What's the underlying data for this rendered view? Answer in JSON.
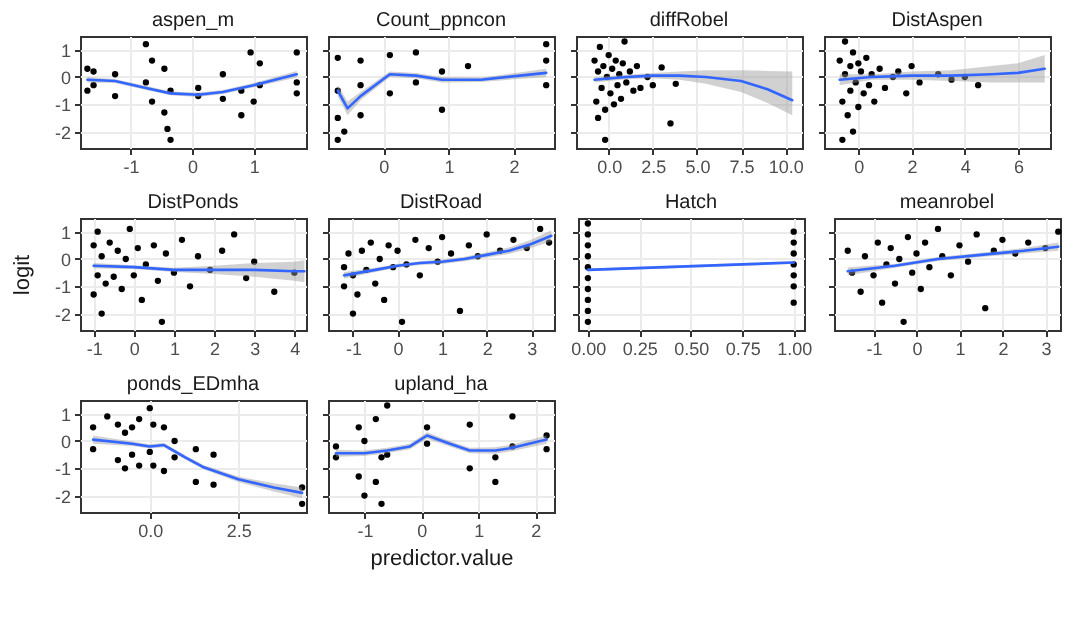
{
  "chart_data": [
    {
      "type": "scatter",
      "title": "aspen_m",
      "xlim": [
        -1.82,
        1.85
      ],
      "xticks": [
        -1,
        0,
        1
      ],
      "ylim": [
        -2.6,
        1.5
      ],
      "yticks": [
        -2,
        -1,
        0,
        1
      ],
      "grid": true,
      "series": [
        {
          "color": "#000000",
          "marker": "circle",
          "x": [
            -1.7,
            -1.7,
            -1.6,
            -1.6,
            -1.25,
            -1.25,
            -0.75,
            -0.75,
            -0.65,
            -0.65,
            -0.45,
            -0.45,
            -0.35,
            -0.35,
            -0.4,
            0.1,
            0.1,
            0.5,
            0.5,
            0.8,
            0.8,
            0.95,
            1.0,
            1.1,
            1.1,
            1.7,
            1.7,
            1.7
          ],
          "values": [
            0.3,
            -0.5,
            0.2,
            -0.3,
            0.1,
            -0.7,
            1.2,
            -0.2,
            0.6,
            -0.9,
            0.3,
            -1.3,
            -0.5,
            -2.3,
            -1.9,
            -0.4,
            -0.7,
            0.1,
            -0.8,
            -0.5,
            -1.4,
            0.9,
            -0.9,
            0.5,
            -0.3,
            0.9,
            -0.2,
            -0.6
          ]
        },
        {
          "type": "line",
          "color": "#3366ff",
          "x": [
            -1.7,
            -1.25,
            -0.75,
            -0.35,
            0.1,
            0.5,
            1.0,
            1.7
          ],
          "values": [
            -0.1,
            -0.15,
            -0.4,
            -0.6,
            -0.65,
            -0.55,
            -0.3,
            0.1
          ],
          "lower": [
            -0.2,
            -0.22,
            -0.48,
            -0.67,
            -0.73,
            -0.62,
            -0.38,
            -0.02
          ],
          "upper": [
            0.0,
            -0.08,
            -0.32,
            -0.53,
            -0.57,
            -0.48,
            -0.22,
            0.22
          ]
        }
      ]
    },
    {
      "type": "scatter",
      "title": "Count_ppncon",
      "xlim": [
        -0.85,
        2.62
      ],
      "xticks": [
        0,
        1,
        2
      ],
      "ylim": [
        -2.6,
        1.5
      ],
      "yticks": [
        -2,
        -1,
        0,
        1
      ],
      "tick_labels": "x",
      "grid": true,
      "series": [
        {
          "color": "#000000",
          "marker": "circle",
          "x": [
            -0.7,
            -0.7,
            -0.7,
            -0.7,
            -0.6,
            -0.35,
            -0.35,
            -0.35,
            0.1,
            0.1,
            0.5,
            0.5,
            0.9,
            0.9,
            1.3,
            2.5,
            2.5,
            2.5
          ],
          "values": [
            0.7,
            -0.5,
            -1.5,
            -2.3,
            -2.0,
            0.6,
            -0.3,
            -1.4,
            0.8,
            -0.6,
            0.9,
            -0.2,
            0.2,
            -1.2,
            0.4,
            1.2,
            -0.3,
            0.6
          ]
        },
        {
          "type": "line",
          "color": "#3366ff",
          "x": [
            -0.7,
            -0.55,
            -0.35,
            0.1,
            0.5,
            0.9,
            1.5,
            2.5
          ],
          "values": [
            -0.5,
            -1.15,
            -0.7,
            0.1,
            0.05,
            -0.1,
            -0.1,
            0.15
          ],
          "lower": [
            -0.7,
            -1.4,
            -0.85,
            0.0,
            -0.05,
            -0.2,
            -0.18,
            0.0
          ],
          "upper": [
            -0.3,
            -0.9,
            -0.55,
            0.2,
            0.15,
            0.0,
            -0.02,
            0.3
          ]
        }
      ]
    },
    {
      "type": "scatter",
      "title": "diffRobel",
      "xlim": [
        -1.85,
        10.95
      ],
      "xticks": [
        {
          "value": 0,
          "label": "0.0"
        },
        {
          "value": 2.5,
          "label": "2.5"
        },
        {
          "value": 5,
          "label": "5.0"
        },
        {
          "value": 7.5,
          "label": "7.5"
        },
        {
          "value": 10,
          "label": "10.0"
        }
      ],
      "ylim": [
        -2.6,
        1.5
      ],
      "yticks": [
        -2,
        -1,
        0,
        1
      ],
      "tick_labels": "x",
      "grid": true,
      "series": [
        {
          "color": "#000000",
          "marker": "circle",
          "x": [
            -0.8,
            -0.7,
            -0.6,
            -0.5,
            -0.4,
            -0.3,
            -0.2,
            -0.2,
            -0.1,
            0.0,
            0.1,
            0.2,
            0.3,
            0.4,
            0.5,
            0.6,
            0.7,
            0.8,
            1.0,
            1.2,
            1.4,
            1.6,
            1.8,
            2.2,
            2.5,
            3.0,
            3.5,
            3.8,
            -0.6,
            0.9
          ],
          "values": [
            0.6,
            -0.9,
            0.2,
            1.1,
            -0.4,
            0.4,
            -1.2,
            -2.3,
            0.0,
            0.8,
            -0.6,
            0.3,
            -1.0,
            0.6,
            -0.3,
            0.1,
            -0.8,
            0.5,
            -0.2,
            0.2,
            -0.5,
            0.4,
            -0.4,
            0.0,
            -0.3,
            0.35,
            -1.7,
            -0.25,
            -1.5,
            1.3
          ]
        },
        {
          "type": "line",
          "color": "#3366ff",
          "x": [
            -0.8,
            1,
            2.5,
            4,
            5.5,
            7.5,
            9,
            10.4
          ],
          "values": [
            -0.1,
            0.0,
            0.05,
            0.05,
            0.0,
            -0.15,
            -0.45,
            -0.85
          ],
          "lower": [
            -0.2,
            -0.08,
            -0.05,
            -0.1,
            -0.25,
            -0.55,
            -0.95,
            -1.4
          ],
          "upper": [
            0.0,
            0.08,
            0.15,
            0.2,
            0.25,
            0.25,
            0.22,
            0.2
          ]
        }
      ]
    },
    {
      "type": "scatter",
      "title": "DistAspen",
      "xlim": [
        -1.29,
        7.2
      ],
      "xticks": [
        0,
        2,
        4,
        6
      ],
      "ylim": [
        -2.6,
        1.5
      ],
      "yticks": [
        -2,
        -1,
        0,
        1
      ],
      "tick_labels": "x",
      "grid": true,
      "series": [
        {
          "color": "#000000",
          "marker": "circle",
          "x": [
            -0.7,
            -0.6,
            -0.5,
            -0.5,
            -0.4,
            -0.3,
            -0.3,
            -0.2,
            -0.2,
            -0.1,
            0.0,
            0.0,
            0.1,
            0.2,
            0.3,
            0.4,
            0.5,
            0.6,
            0.8,
            1.0,
            1.3,
            1.5,
            1.8,
            2.0,
            2.3,
            3.0,
            3.5,
            4.0,
            4.5,
            -0.6
          ],
          "values": [
            0.6,
            -0.9,
            1.3,
            0.1,
            -1.4,
            0.4,
            -0.5,
            0.9,
            -2.0,
            -0.2,
            0.5,
            -1.1,
            0.2,
            -0.6,
            0.7,
            -0.3,
            0.1,
            -0.9,
            0.3,
            -0.4,
            0.0,
            0.2,
            -0.6,
            0.4,
            -0.2,
            0.1,
            -0.1,
            0.0,
            -0.3,
            -2.3
          ]
        },
        {
          "type": "line",
          "color": "#3366ff",
          "x": [
            -0.7,
            0.5,
            2,
            3.5,
            5,
            6,
            7
          ],
          "values": [
            -0.1,
            0.0,
            0.05,
            0.05,
            0.1,
            0.15,
            0.3
          ],
          "lower": [
            -0.3,
            -0.1,
            -0.1,
            -0.15,
            -0.2,
            -0.2,
            -0.2
          ],
          "upper": [
            0.1,
            0.1,
            0.2,
            0.25,
            0.4,
            0.5,
            0.8
          ]
        }
      ]
    },
    {
      "type": "scatter",
      "title": "DistPonds",
      "ylabel": "logit",
      "xlim": [
        -1.34,
        4.29
      ],
      "xticks": [
        -1,
        0,
        1,
        2,
        3,
        4
      ],
      "ylim": [
        -2.6,
        1.5
      ],
      "yticks": [
        -2,
        -1,
        0,
        1
      ],
      "grid": true,
      "series": [
        {
          "color": "#000000",
          "marker": "circle",
          "x": [
            -1.0,
            -1.0,
            -0.9,
            -0.9,
            -0.8,
            -0.8,
            -0.7,
            -0.6,
            -0.5,
            -0.4,
            -0.3,
            -0.2,
            -0.1,
            0.0,
            0.1,
            0.2,
            0.3,
            0.5,
            0.6,
            0.8,
            1.0,
            1.2,
            1.4,
            1.6,
            1.9,
            2.2,
            2.5,
            2.8,
            3.0,
            3.5,
            4.0,
            0.7
          ],
          "values": [
            0.5,
            -1.3,
            1.0,
            -0.6,
            0.1,
            -2.0,
            -0.9,
            0.6,
            -0.65,
            0.3,
            -1.1,
            0.0,
            1.1,
            -0.6,
            0.4,
            -1.5,
            -0.2,
            0.5,
            -0.8,
            0.2,
            -0.5,
            0.7,
            -1.0,
            0.1,
            -0.4,
            0.3,
            0.9,
            -0.7,
            -0.1,
            -1.2,
            -0.5,
            -2.3
          ]
        },
        {
          "type": "line",
          "color": "#3366ff",
          "x": [
            -1,
            0,
            1,
            2,
            3,
            4,
            4.25
          ],
          "values": [
            -0.25,
            -0.3,
            -0.4,
            -0.4,
            -0.4,
            -0.45,
            -0.45
          ],
          "lower": [
            -0.35,
            -0.37,
            -0.48,
            -0.55,
            -0.65,
            -0.8,
            -0.85
          ],
          "upper": [
            -0.15,
            -0.23,
            -0.32,
            -0.25,
            -0.15,
            -0.1,
            -0.05
          ]
        }
      ]
    },
    {
      "type": "scatter",
      "title": "DistRoad",
      "xlim": [
        -1.56,
        3.51
      ],
      "xticks": [
        -1,
        0,
        1,
        2,
        3
      ],
      "ylim": [
        -2.6,
        1.5
      ],
      "yticks": [
        -2,
        -1,
        0,
        1
      ],
      "tick_labels": "x",
      "grid": true,
      "series": [
        {
          "color": "#000000",
          "marker": "circle",
          "x": [
            -1.2,
            -1.2,
            -1.1,
            -1.0,
            -1.0,
            -0.9,
            -0.8,
            -0.7,
            -0.6,
            -0.5,
            -0.4,
            -0.3,
            -0.2,
            -0.1,
            0.0,
            0.1,
            0.2,
            0.4,
            0.5,
            0.7,
            0.9,
            1.0,
            1.2,
            1.4,
            1.6,
            1.8,
            2.0,
            2.3,
            2.6,
            2.9,
            3.2,
            3.4
          ],
          "values": [
            -0.3,
            -1.0,
            0.2,
            -0.6,
            -2.0,
            -1.3,
            0.3,
            -0.4,
            0.6,
            -0.9,
            0.0,
            -1.5,
            0.5,
            -0.3,
            0.3,
            -2.3,
            -0.2,
            0.7,
            -0.6,
            0.4,
            -0.1,
            0.8,
            0.2,
            -1.9,
            0.5,
            0.1,
            0.9,
            0.3,
            0.7,
            0.4,
            1.1,
            0.6
          ]
        },
        {
          "type": "line",
          "color": "#3366ff",
          "x": [
            -1.2,
            -0.5,
            0,
            0.5,
            1,
            1.5,
            2,
            2.5,
            3,
            3.45
          ],
          "values": [
            -0.6,
            -0.4,
            -0.25,
            -0.15,
            -0.1,
            0.0,
            0.15,
            0.3,
            0.55,
            0.85
          ],
          "lower": [
            -0.72,
            -0.48,
            -0.32,
            -0.22,
            -0.18,
            -0.08,
            0.05,
            0.18,
            0.4,
            0.65
          ],
          "upper": [
            -0.48,
            -0.32,
            -0.18,
            -0.08,
            -0.02,
            0.08,
            0.25,
            0.42,
            0.7,
            1.05
          ]
        }
      ]
    },
    {
      "type": "scatter",
      "title": "Hatch",
      "xlim": [
        -0.048,
        1.05
      ],
      "xticks": [
        {
          "value": 0,
          "label": "0.00"
        },
        {
          "value": 0.25,
          "label": "0.25"
        },
        {
          "value": 0.5,
          "label": "0.50"
        },
        {
          "value": 0.75,
          "label": "0.75"
        },
        {
          "value": 1,
          "label": "1.00"
        }
      ],
      "ylim": [
        -2.6,
        1.5
      ],
      "yticks": [
        -2,
        -1,
        0,
        1
      ],
      "tick_labels": "x",
      "grid": true,
      "series": [
        {
          "color": "#000000",
          "marker": "circle",
          "x": [
            0,
            0,
            0,
            0,
            0,
            0,
            0,
            0,
            0,
            0,
            1,
            1,
            1,
            1,
            1,
            1,
            1
          ],
          "values": [
            1.3,
            0.9,
            0.5,
            0.1,
            -0.3,
            -0.7,
            -1.1,
            -1.5,
            -1.9,
            -2.3,
            1.0,
            0.6,
            0.2,
            -0.2,
            -0.6,
            -1.0,
            -1.6
          ]
        },
        {
          "type": "line",
          "color": "#3366ff",
          "x": [
            0,
            1
          ],
          "values": [
            -0.4,
            -0.13
          ],
          "lower": [
            -0.45,
            -0.18
          ],
          "upper": [
            -0.35,
            -0.08
          ]
        }
      ]
    },
    {
      "type": "scatter",
      "title": "meanrobel",
      "xlim": [
        -1.92,
        3.34
      ],
      "xticks": [
        -1,
        0,
        1,
        2,
        3
      ],
      "ylim": [
        -2.6,
        1.5
      ],
      "yticks": [
        -2,
        -1,
        0,
        1
      ],
      "tick_labels": "x",
      "grid": true,
      "series": [
        {
          "color": "#000000",
          "marker": "circle",
          "x": [
            -1.6,
            -1.5,
            -1.3,
            -1.2,
            -1.0,
            -0.9,
            -0.8,
            -0.7,
            -0.6,
            -0.5,
            -0.4,
            -0.3,
            -0.2,
            -0.1,
            0.0,
            0.1,
            0.2,
            0.3,
            0.5,
            0.6,
            0.8,
            1.0,
            1.2,
            1.4,
            1.6,
            1.8,
            2.0,
            2.3,
            2.6,
            3.0,
            3.3
          ],
          "values": [
            0.3,
            -0.5,
            -1.2,
            0.1,
            -0.6,
            0.6,
            -1.6,
            -0.2,
            0.4,
            -0.9,
            0.0,
            -2.3,
            0.8,
            -0.5,
            0.2,
            -1.1,
            0.6,
            -0.3,
            1.1,
            0.1,
            -0.6,
            0.5,
            -0.1,
            0.9,
            -1.8,
            0.3,
            0.7,
            0.2,
            0.6,
            0.4,
            1.0
          ]
        },
        {
          "type": "line",
          "color": "#3366ff",
          "x": [
            -1.6,
            -0.5,
            0.5,
            1.5,
            2.5,
            3.3
          ],
          "values": [
            -0.45,
            -0.25,
            0.0,
            0.15,
            0.3,
            0.45
          ],
          "lower": [
            -0.6,
            -0.32,
            -0.07,
            0.07,
            0.2,
            0.3
          ],
          "upper": [
            -0.3,
            -0.18,
            0.07,
            0.23,
            0.4,
            0.6
          ]
        }
      ]
    },
    {
      "type": "scatter",
      "title": "ponds_EDmha",
      "xlim": [
        -1.97,
        4.41
      ],
      "xticks": [
        {
          "value": 0,
          "label": "0.0"
        },
        {
          "value": 2.5,
          "label": "2.5"
        }
      ],
      "ylim": [
        -2.6,
        1.5
      ],
      "yticks": [
        -2,
        -1,
        0,
        1
      ],
      "grid": true,
      "series": [
        {
          "color": "#000000",
          "marker": "circle",
          "x": [
            -1.6,
            -1.6,
            -1.2,
            -0.9,
            -0.9,
            -0.7,
            -0.7,
            -0.5,
            -0.5,
            -0.3,
            -0.3,
            0.0,
            0.0,
            0.1,
            0.1,
            0.4,
            0.4,
            0.7,
            0.7,
            1.3,
            1.3,
            1.8,
            1.8,
            4.3,
            4.3
          ],
          "values": [
            0.5,
            -0.3,
            0.9,
            0.6,
            -0.7,
            0.3,
            -1.0,
            0.5,
            -0.5,
            0.8,
            -0.9,
            1.2,
            -0.4,
            0.6,
            -0.9,
            0.5,
            -1.1,
            0.0,
            -0.6,
            -0.3,
            -1.5,
            -0.5,
            -1.6,
            -1.7,
            -2.3
          ]
        },
        {
          "type": "line",
          "color": "#3366ff",
          "x": [
            -1.6,
            -0.5,
            0,
            0.4,
            1,
            1.5,
            2.5,
            3.5,
            4.3
          ],
          "values": [
            0.05,
            -0.1,
            -0.2,
            -0.15,
            -0.6,
            -0.95,
            -1.4,
            -1.7,
            -1.9
          ],
          "lower": [
            -0.1,
            -0.18,
            -0.28,
            -0.23,
            -0.68,
            -1.03,
            -1.5,
            -1.85,
            -2.1
          ],
          "upper": [
            0.2,
            -0.02,
            -0.12,
            -0.07,
            -0.52,
            -0.87,
            -1.3,
            -1.55,
            -1.7
          ]
        }
      ]
    },
    {
      "type": "scatter",
      "title": "upland_ha",
      "xlabel": "predictor.value",
      "xlim": [
        -1.64,
        2.33
      ],
      "xticks": [
        -1,
        0,
        1,
        2
      ],
      "ylim": [
        -2.6,
        1.5
      ],
      "yticks": [
        -2,
        -1,
        0,
        1
      ],
      "tick_labels": "x",
      "grid": true,
      "series": [
        {
          "color": "#000000",
          "marker": "circle",
          "x": [
            -1.5,
            -1.5,
            -1.1,
            -1.1,
            -1.0,
            -1.0,
            -0.8,
            -0.8,
            -0.7,
            -0.7,
            -0.6,
            -0.6,
            0.1,
            0.1,
            0.85,
            0.85,
            1.3,
            1.3,
            1.6,
            1.6,
            2.2,
            2.2
          ],
          "values": [
            -0.2,
            -0.6,
            0.5,
            -1.3,
            0.0,
            -2.0,
            0.8,
            -1.5,
            -0.6,
            -2.3,
            1.3,
            -0.5,
            0.5,
            -0.1,
            0.6,
            -1.0,
            -0.6,
            -1.5,
            0.9,
            -0.2,
            0.2,
            -0.3
          ]
        },
        {
          "type": "line",
          "color": "#3366ff",
          "x": [
            -1.5,
            -1,
            -0.6,
            -0.2,
            0.1,
            0.5,
            0.85,
            1.3,
            1.6,
            2.2
          ],
          "values": [
            -0.45,
            -0.45,
            -0.35,
            -0.2,
            0.2,
            -0.1,
            -0.35,
            -0.35,
            -0.25,
            0.05
          ],
          "lower": [
            -0.58,
            -0.55,
            -0.45,
            -0.3,
            0.08,
            -0.2,
            -0.45,
            -0.47,
            -0.37,
            -0.1
          ],
          "upper": [
            -0.32,
            -0.35,
            -0.25,
            -0.1,
            0.32,
            0.0,
            -0.25,
            -0.23,
            -0.13,
            0.2
          ]
        }
      ]
    }
  ]
}
